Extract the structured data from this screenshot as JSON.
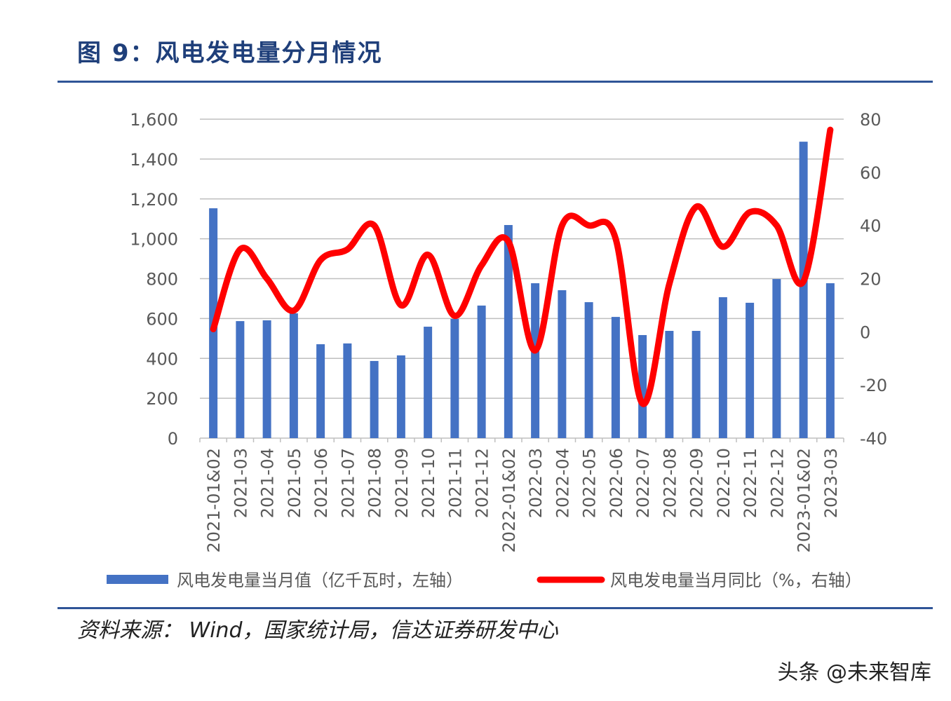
{
  "title": "图 9：风电发电量分月情况",
  "source": "资料来源： Wind，国家统计局，信达证券研发中心",
  "watermark": "头条 @未来智库",
  "chart_data": {
    "type": "bar+line",
    "categories": [
      "2021-01&02",
      "2021-03",
      "2021-04",
      "2021-05",
      "2021-06",
      "2021-07",
      "2021-08",
      "2021-09",
      "2021-10",
      "2021-11",
      "2021-12",
      "2022-01&02",
      "2022-03",
      "2022-04",
      "2022-05",
      "2022-06",
      "2022-07",
      "2022-08",
      "2022-09",
      "2022-10",
      "2022-11",
      "2022-12",
      "2023-01&02",
      "2023-03"
    ],
    "series": [
      {
        "name": "风电发电量当月值（亿千瓦时，左轴）",
        "type": "bar",
        "axis": "left",
        "color": "#4472c4",
        "values": [
          1153,
          587,
          591,
          626,
          471,
          475,
          387,
          415,
          559,
          598,
          665,
          1069,
          777,
          742,
          682,
          608,
          517,
          538,
          538,
          707,
          679,
          798,
          1487,
          777
        ]
      },
      {
        "name": "风电发电量当月同比（%，右轴）",
        "type": "line",
        "axis": "right",
        "color": "#ff0000",
        "values": [
          1,
          31,
          20,
          8,
          27,
          31,
          40,
          10,
          29,
          6,
          25,
          34,
          -7,
          40,
          40,
          35,
          -27,
          18,
          47,
          32,
          45,
          40,
          19,
          76
        ]
      }
    ],
    "left_axis": {
      "range": [
        0,
        1600
      ],
      "ticks": [
        "0",
        "200",
        "400",
        "600",
        "800",
        "1,000",
        "1,200",
        "1,400",
        "1,600"
      ]
    },
    "right_axis": {
      "range": [
        -40,
        80
      ],
      "ticks": [
        "-40",
        "-20",
        "0",
        "20",
        "40",
        "60",
        "80"
      ]
    },
    "grid": true,
    "legend": "bottom"
  }
}
